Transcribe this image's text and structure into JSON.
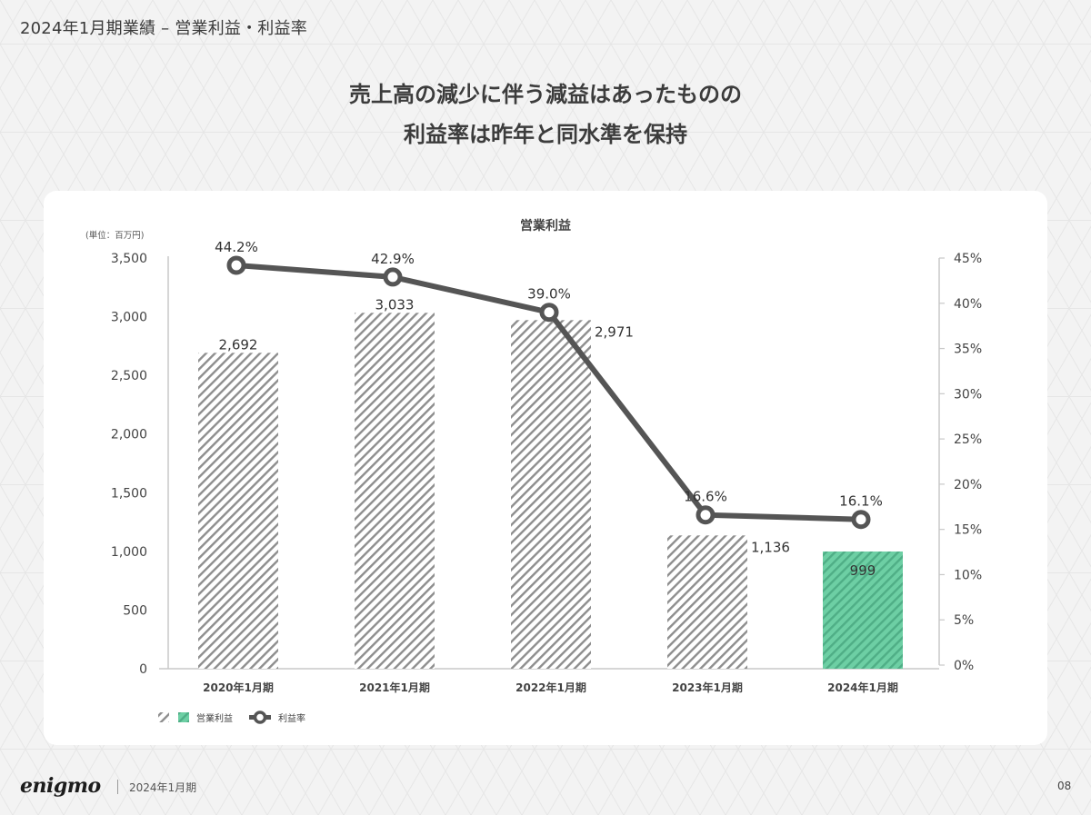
{
  "page": {
    "header_title": "2024年1月期業績 – 営業利益・利益率",
    "headline_line1": "売上高の減少に伴う減益はあったものの",
    "headline_line2": "利益率は昨年と同水準を保持"
  },
  "footer": {
    "logo_text": "enigmo",
    "period": "2024年1月期",
    "page_number": "08"
  },
  "colors": {
    "background": "#f3f3f3",
    "card": "#ffffff",
    "bar_hatch": "#8e8e8e",
    "highlight_bar": "#6dcfa4",
    "highlight_hatch": "#4fae86",
    "line": "#555555",
    "axis": "#c8c8c8",
    "text": "#444444"
  },
  "chart_data": {
    "type": "bar+line",
    "title": "営業利益",
    "unit_label": "(単位：百万円)",
    "categories": [
      "2020年1月期",
      "2021年1月期",
      "2022年1月期",
      "2023年1月期",
      "2024年1月期"
    ],
    "series": [
      {
        "name": "営業利益",
        "type": "bar",
        "axis": "left",
        "values": [
          2692,
          3033,
          2971,
          1136,
          999
        ],
        "labels": [
          "2,692",
          "3,033",
          "2,971",
          "1,136",
          "999"
        ],
        "highlight_index": 4
      },
      {
        "name": "利益率",
        "type": "line",
        "axis": "right",
        "values": [
          44.2,
          42.9,
          39.0,
          16.6,
          16.1
        ],
        "labels": [
          "44.2%",
          "42.9%",
          "39.0%",
          "16.6%",
          "16.1%"
        ]
      }
    ],
    "left_axis": {
      "ylim": [
        0,
        3500
      ],
      "ticks": [
        "0",
        "500",
        "1,000",
        "1,500",
        "2,000",
        "2,500",
        "3,000",
        "3,500"
      ]
    },
    "right_axis": {
      "ylim": [
        0,
        45
      ],
      "ticks": [
        "0%",
        "5%",
        "10%",
        "15%",
        "20%",
        "25%",
        "30%",
        "35%",
        "40%",
        "45%"
      ]
    },
    "legend": {
      "position": "bottom-left",
      "items": [
        "営業利益",
        "利益率"
      ]
    },
    "grid": false
  }
}
